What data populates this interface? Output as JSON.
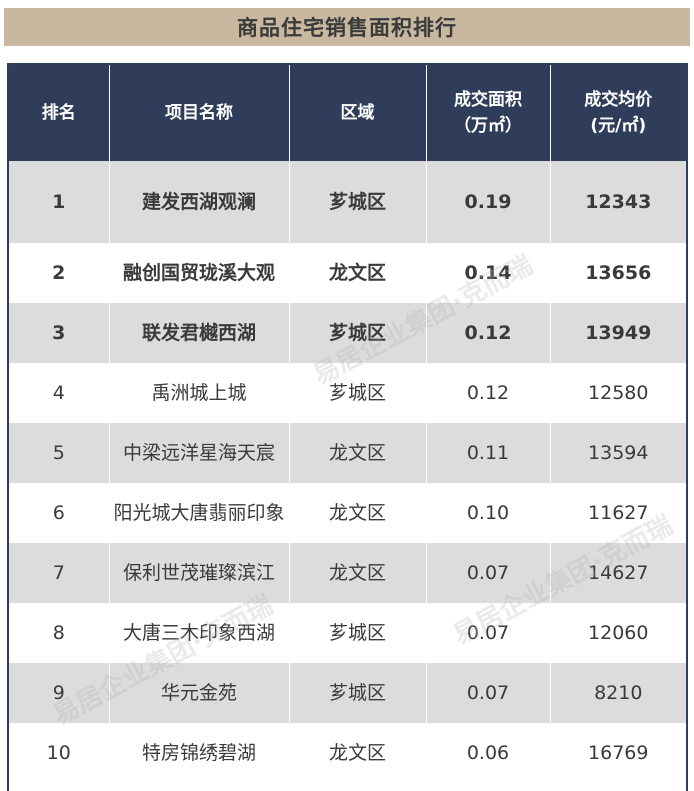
{
  "title": "商品住宅销售面积排行",
  "headers": [
    {
      "line1": "排名",
      "line2": ""
    },
    {
      "line1": "项目名称",
      "line2": ""
    },
    {
      "line1": "区域",
      "line2": ""
    },
    {
      "line1": "成交面积",
      "line2": "（万㎡）"
    },
    {
      "line1": "成交均价",
      "line2": "(元/㎡)"
    }
  ],
  "rows": [
    {
      "rank": "1",
      "name": "建发西湖观澜",
      "district": "芗城区",
      "area": "0.19",
      "price": "12343"
    },
    {
      "rank": "2",
      "name": "融创国贸珑溪大观",
      "district": "龙文区",
      "area": "0.14",
      "price": "13656"
    },
    {
      "rank": "3",
      "name": "联发君樾西湖",
      "district": "芗城区",
      "area": "0.12",
      "price": "13949"
    },
    {
      "rank": "4",
      "name": "禹洲城上城",
      "district": "芗城区",
      "area": "0.12",
      "price": "12580"
    },
    {
      "rank": "5",
      "name": "中梁远洋星海天宸",
      "district": "龙文区",
      "area": "0.11",
      "price": "13594"
    },
    {
      "rank": "6",
      "name": "阳光城大唐翡丽印象",
      "district": "龙文区",
      "area": "0.10",
      "price": "11627"
    },
    {
      "rank": "7",
      "name": "保利世茂璀璨滨江",
      "district": "龙文区",
      "area": "0.07",
      "price": "14627"
    },
    {
      "rank": "8",
      "name": "大唐三木印象西湖",
      "district": "芗城区",
      "area": "0.07",
      "price": "12060"
    },
    {
      "rank": "9",
      "name": "华元金苑",
      "district": "芗城区",
      "area": "0.07",
      "price": "8210"
    },
    {
      "rank": "10",
      "name": "特房锦绣碧湖",
      "district": "龙文区",
      "area": "0.06",
      "price": "16769"
    }
  ],
  "watermark_text": "易居企业集团·克而瑞",
  "colors": {
    "header_bg": "#2f3d5b",
    "title_bg": "#c9b8a0",
    "row_alt": "#dcdcdc"
  }
}
